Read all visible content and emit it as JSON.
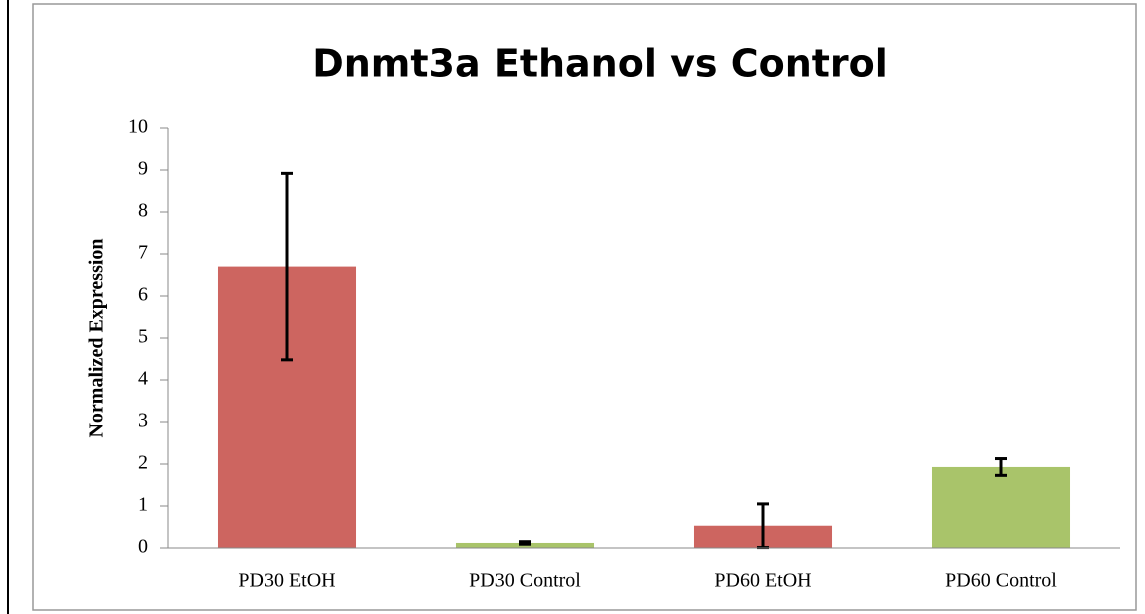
{
  "chart_data": {
    "type": "bar",
    "title": "Dnmt3a Ethanol vs Control",
    "y_label": "Normalized Expression",
    "categories": [
      "PD30 EtOH",
      "PD30 Control",
      "PD60 EtOH",
      "PD60 Control"
    ],
    "values": [
      6.7,
      0.12,
      0.53,
      1.93
    ],
    "errors": [
      2.22,
      0.03,
      0.52,
      0.2
    ],
    "colors": [
      "#cd6560",
      "#a9c46a",
      "#cd6560",
      "#a9c46a"
    ],
    "ylim": [
      0,
      10
    ],
    "yticks": [
      0,
      1,
      2,
      3,
      4,
      5,
      6,
      7,
      8,
      9,
      10
    ],
    "grid": false
  }
}
